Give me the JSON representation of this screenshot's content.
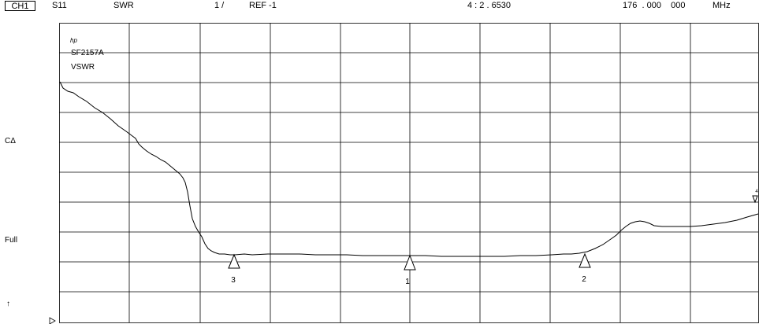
{
  "header": {
    "channel": "CH1",
    "param": "S11",
    "format": "SWR",
    "scale": "1 /",
    "ref": "REF -1",
    "marker_readout": "4 : 2 . 6530",
    "freq": "176  . 000    000",
    "unit": "MHz"
  },
  "annotations": {
    "logo": "hp",
    "model": "SF2157A",
    "mode": "VSWR"
  },
  "side_labels": {
    "cdelta": "CΔ",
    "full": "Full",
    "arrow": "↑"
  },
  "markers": [
    {
      "label": "3"
    },
    {
      "label": "1"
    },
    {
      "label": "2"
    },
    {
      "label": "4"
    }
  ]
}
